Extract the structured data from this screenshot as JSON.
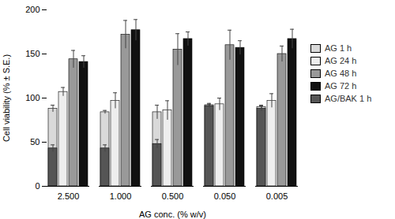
{
  "chart_data": {
    "type": "bar",
    "xlabel": "AG conc. (% w/v)",
    "ylabel": "Cell viability (% ± S.E.)",
    "categories": [
      "2.500",
      "1.000",
      "0.500",
      "0.050",
      "0.005"
    ],
    "series": [
      {
        "name": "AG 1 h",
        "color": "#d9d9d9",
        "values": [
          88,
          84,
          84,
          92,
          90
        ],
        "errors": [
          4,
          2,
          8,
          2,
          2
        ]
      },
      {
        "name": "AG 24 h",
        "color": "#eeeeee",
        "values": [
          107,
          97,
          86,
          93,
          97
        ],
        "errors": [
          5,
          9,
          11,
          7,
          8
        ]
      },
      {
        "name": "AG 48 h",
        "color": "#999999",
        "values": [
          144,
          172,
          155,
          160,
          150
        ],
        "errors": [
          10,
          16,
          18,
          17,
          9
        ]
      },
      {
        "name": "AG 72 h",
        "color": "#111111",
        "values": [
          141,
          177,
          167,
          157,
          167
        ],
        "errors": [
          7,
          12,
          8,
          8,
          11
        ]
      },
      {
        "name": "AG/BAK 1 h",
        "color": "#555555",
        "values": [
          43,
          43,
          48,
          91,
          88
        ],
        "errors": [
          4,
          4,
          5,
          2,
          3
        ]
      }
    ],
    "ylim": [
      0,
      200
    ],
    "yticks": [
      0,
      50,
      100,
      150,
      200
    ],
    "legend": "right"
  }
}
